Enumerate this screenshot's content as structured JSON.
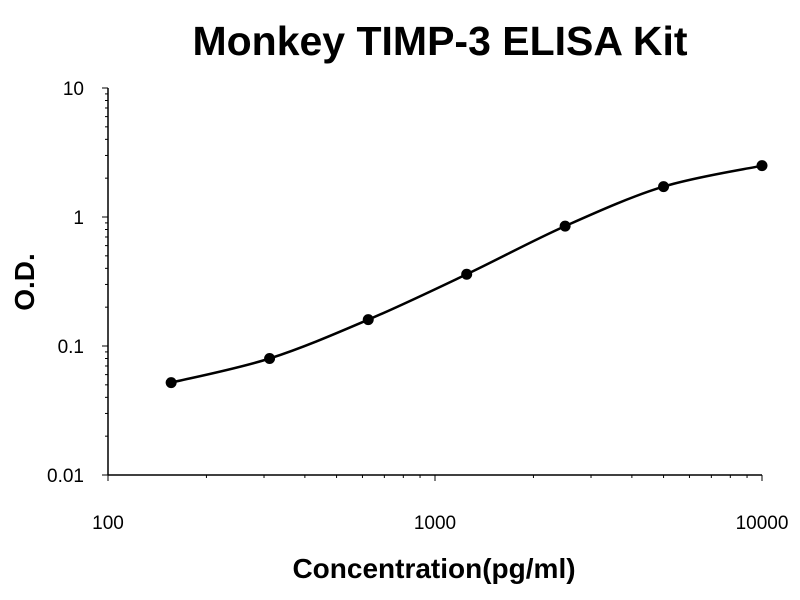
{
  "chart_data": {
    "type": "scatter",
    "title": "Monkey TIMP-3 ELISA Kit",
    "xlabel": "Concentration(pg/ml)",
    "ylabel": "O.D.",
    "x_scale": "log",
    "y_scale": "log",
    "xlim": [
      100,
      10000
    ],
    "ylim": [
      0.01,
      10
    ],
    "x_ticks": [
      "100",
      "1000",
      "10000"
    ],
    "y_ticks": [
      "0.01",
      "0.1",
      "1",
      "10"
    ],
    "grid": false,
    "legend": "none",
    "fit_line": "smooth curve through points",
    "series": [
      {
        "x": [
          156,
          312,
          625,
          1250,
          2500,
          5000,
          10000
        ],
        "y": [
          0.052,
          0.08,
          0.16,
          0.36,
          0.85,
          1.72,
          2.5
        ]
      }
    ],
    "colors": {
      "line": "#000000",
      "points": "#000000"
    }
  }
}
